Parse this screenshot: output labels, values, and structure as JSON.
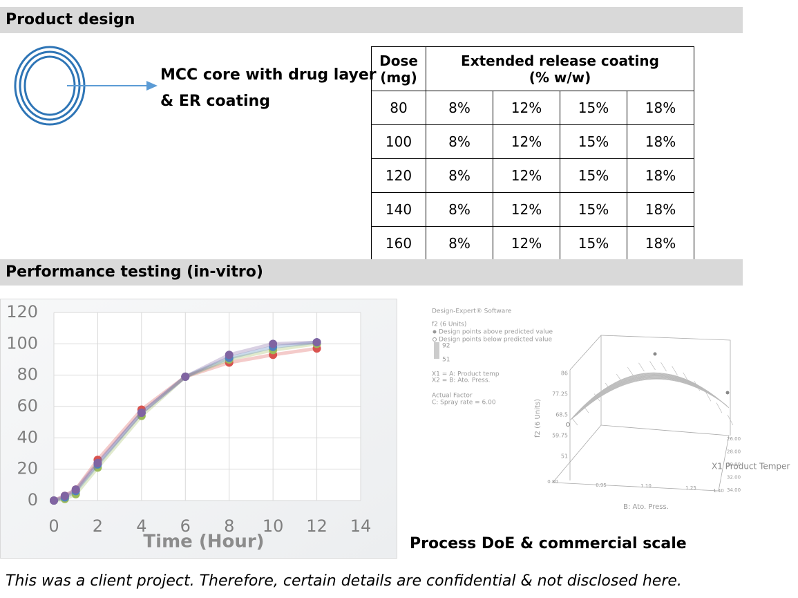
{
  "sections": [
    "Product design",
    "Performance testing (in-vitro)"
  ],
  "design_label": [
    "MCC core with drug layer",
    "& ER coating"
  ],
  "table": {
    "header": [
      "Dose (mg)",
      "Extended release coating (% w/w)"
    ],
    "rows": [
      [
        "80",
        "8%",
        "12%",
        "15%",
        "18%"
      ],
      [
        "100",
        "8%",
        "12%",
        "15%",
        "18%"
      ],
      [
        "120",
        "8%",
        "12%",
        "15%",
        "18%"
      ],
      [
        "140",
        "8%",
        "12%",
        "15%",
        "18%"
      ],
      [
        "160",
        "8%",
        "12%",
        "15%",
        "18%"
      ]
    ]
  },
  "chart_data": {
    "type": "line",
    "x_label": "Time (Hour)",
    "x": [
      0,
      0.5,
      1,
      2,
      4,
      6,
      8,
      10,
      12
    ],
    "series": [
      {
        "color": "#d9534f",
        "values": [
          0,
          3,
          7,
          26,
          58,
          79,
          88,
          93,
          97
        ]
      },
      {
        "color": "#9bbb59",
        "values": [
          0,
          1,
          4,
          21,
          54,
          79,
          90,
          96,
          100
        ]
      },
      {
        "color": "#4f81bd",
        "values": [
          0,
          2,
          6,
          23,
          56,
          79,
          91,
          98,
          101
        ]
      },
      {
        "color": "#8064a2",
        "values": [
          0,
          3,
          7,
          24,
          56,
          79,
          93,
          100,
          101
        ]
      }
    ],
    "xlim": [
      0,
      14
    ],
    "ylim": [
      0,
      120
    ],
    "xticks": [
      0,
      2,
      4,
      6,
      8,
      10,
      12,
      14
    ],
    "yticks": [
      0,
      20,
      40,
      60,
      80,
      100,
      120
    ],
    "grid": true
  },
  "doe": {
    "software": "Design-Expert® Software",
    "response": "f2 (6 Units)",
    "points_above": "Design points above predicted value",
    "points_below": "Design points below predicted value",
    "scale_high": "92",
    "scale_low": "51",
    "x1": "X1 = A: Product temp",
    "x2": "X2 = B: Ato. Press.",
    "actual_factor": "Actual Factor",
    "factor_c": "C: Spray rate = 6.00",
    "z_label": "f2 (6 Units)",
    "z_ticks": [
      "86",
      "77.25",
      "68.5",
      "59.75",
      "51"
    ],
    "b_ticks": [
      "0.80",
      "0.95",
      "1.10",
      "1.25",
      "1.40"
    ],
    "b_label": "B: Ato. Press.",
    "a_ticks": [
      "26.00",
      "28.00",
      "30.00",
      "32.00",
      "34.00"
    ],
    "a_label": "X1 Product Temper",
    "caption": "Process DoE & commercial scale"
  },
  "footer": "This was a client project. Therefore, certain details are confidential & not disclosed here."
}
